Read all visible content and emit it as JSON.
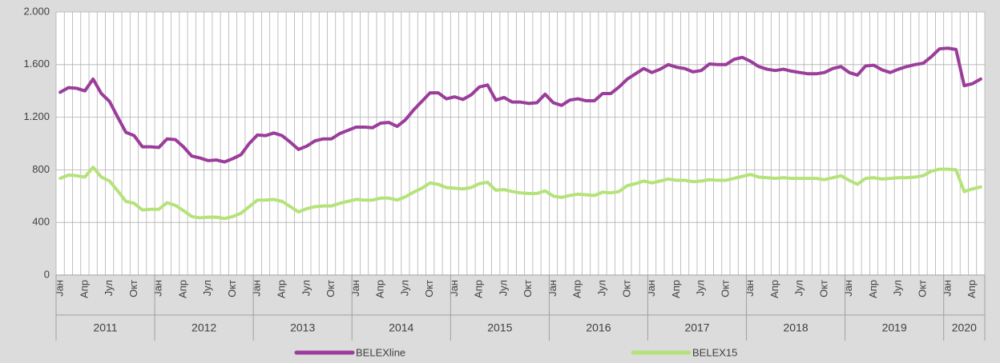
{
  "chart_data": {
    "type": "line",
    "categories": [
      "Јан",
      null,
      null,
      "Апр",
      null,
      null,
      "Јул",
      null,
      null,
      "Окт",
      null,
      null,
      "Јан",
      null,
      null,
      "Апр",
      null,
      null,
      "Јул",
      null,
      null,
      "Окт",
      null,
      null,
      "Јан",
      null,
      null,
      "Апр",
      null,
      null,
      "Јул",
      null,
      null,
      "Окт",
      null,
      null,
      "Јан",
      null,
      null,
      "Апр",
      null,
      null,
      "Јул",
      null,
      null,
      "Окт",
      null,
      null,
      "Јан",
      null,
      null,
      "Апр",
      null,
      null,
      "Јул",
      null,
      null,
      "Окт",
      null,
      null,
      "Јан",
      null,
      null,
      "Апр",
      null,
      null,
      "Јул",
      null,
      null,
      "Окт",
      null,
      null,
      "Јан",
      null,
      null,
      "Апр",
      null,
      null,
      "Јул",
      null,
      null,
      "Окт",
      null,
      null,
      "Јан",
      null,
      null,
      "Апр",
      null,
      null,
      "Јул",
      null,
      null,
      "Окт",
      null,
      null,
      "Јан",
      null,
      null,
      "Апр",
      null,
      null,
      "Јул",
      null,
      null,
      "Окт",
      null,
      null,
      "Јан",
      null,
      null,
      "Апр",
      null
    ],
    "x_groups": [
      "2011",
      "2012",
      "2013",
      "2014",
      "2015",
      "2016",
      "2017",
      "2018",
      "2019",
      "2020"
    ],
    "series": [
      {
        "name": "BELEXline",
        "color": "#9b3d9b",
        "values": [
          1390,
          1425,
          1420,
          1400,
          1490,
          1380,
          1320,
          1200,
          1085,
          1060,
          975,
          975,
          970,
          1035,
          1030,
          975,
          905,
          890,
          870,
          875,
          860,
          885,
          915,
          1000,
          1065,
          1060,
          1080,
          1060,
          1010,
          955,
          980,
          1020,
          1035,
          1035,
          1075,
          1100,
          1125,
          1125,
          1120,
          1155,
          1160,
          1130,
          1180,
          1255,
          1320,
          1385,
          1385,
          1340,
          1355,
          1335,
          1370,
          1430,
          1445,
          1330,
          1350,
          1315,
          1315,
          1305,
          1310,
          1375,
          1310,
          1290,
          1330,
          1340,
          1325,
          1325,
          1380,
          1380,
          1430,
          1490,
          1530,
          1570,
          1540,
          1565,
          1600,
          1580,
          1570,
          1545,
          1555,
          1605,
          1600,
          1600,
          1640,
          1655,
          1625,
          1585,
          1565,
          1555,
          1565,
          1550,
          1540,
          1530,
          1530,
          1540,
          1570,
          1585,
          1540,
          1520,
          1590,
          1595,
          1560,
          1540,
          1565,
          1585,
          1600,
          1610,
          1660,
          1720,
          1725,
          1715,
          1440,
          1455,
          1490
        ]
      },
      {
        "name": "BELEX15",
        "color": "#b5e37a",
        "values": [
          735,
          760,
          755,
          745,
          820,
          745,
          715,
          640,
          560,
          545,
          495,
          500,
          500,
          550,
          530,
          490,
          445,
          435,
          440,
          440,
          430,
          445,
          470,
          520,
          570,
          570,
          575,
          560,
          520,
          480,
          505,
          520,
          525,
          525,
          545,
          560,
          575,
          570,
          570,
          585,
          585,
          570,
          595,
          630,
          660,
          700,
          690,
          665,
          660,
          655,
          665,
          695,
          705,
          645,
          650,
          635,
          625,
          620,
          620,
          640,
          600,
          590,
          605,
          615,
          610,
          605,
          630,
          625,
          635,
          680,
          695,
          715,
          700,
          715,
          730,
          720,
          720,
          710,
          715,
          725,
          720,
          720,
          735,
          750,
          765,
          745,
          740,
          735,
          740,
          735,
          735,
          735,
          735,
          725,
          740,
          755,
          720,
          690,
          735,
          740,
          730,
          735,
          740,
          740,
          745,
          755,
          790,
          805,
          805,
          800,
          635,
          655,
          670
        ]
      }
    ],
    "ylim": [
      0,
      2000
    ],
    "yticks": [
      0,
      400,
      800,
      {
        "value": 1200,
        "label": "1.200"
      },
      {
        "value": 1600,
        "label": "1.600"
      },
      {
        "value": 2000,
        "label": "2.000"
      }
    ],
    "grid": true,
    "legend": "bottom"
  }
}
